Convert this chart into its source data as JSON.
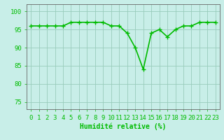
{
  "x": [
    0,
    1,
    2,
    3,
    4,
    5,
    6,
    7,
    8,
    9,
    10,
    11,
    12,
    13,
    14,
    15,
    16,
    17,
    18,
    19,
    20,
    21,
    22,
    23
  ],
  "y": [
    96,
    96,
    96,
    96,
    96,
    97,
    97,
    97,
    97,
    97,
    96,
    96,
    94,
    90,
    84,
    94,
    95,
    93,
    95,
    96,
    96,
    97,
    97,
    97
  ],
  "line_color": "#00bb00",
  "marker": "+",
  "marker_size": 4,
  "marker_color": "#00bb00",
  "bg_color": "#c8eee8",
  "grid_color": "#99ccbb",
  "axis_color": "#666666",
  "xlabel": "Humidité relative (%)",
  "xlabel_color": "#00bb00",
  "xlabel_fontsize": 7,
  "ytick_labels": [
    "75",
    "80",
    "85",
    "90",
    "95",
    "100"
  ],
  "yticks": [
    75,
    80,
    85,
    90,
    95,
    100
  ],
  "xticks": [
    0,
    1,
    2,
    3,
    4,
    5,
    6,
    7,
    8,
    9,
    10,
    11,
    12,
    13,
    14,
    15,
    16,
    17,
    18,
    19,
    20,
    21,
    22,
    23
  ],
  "ylim": [
    73,
    102
  ],
  "xlim": [
    -0.5,
    23.5
  ],
  "tick_fontsize": 6.5,
  "linewidth": 1.2
}
